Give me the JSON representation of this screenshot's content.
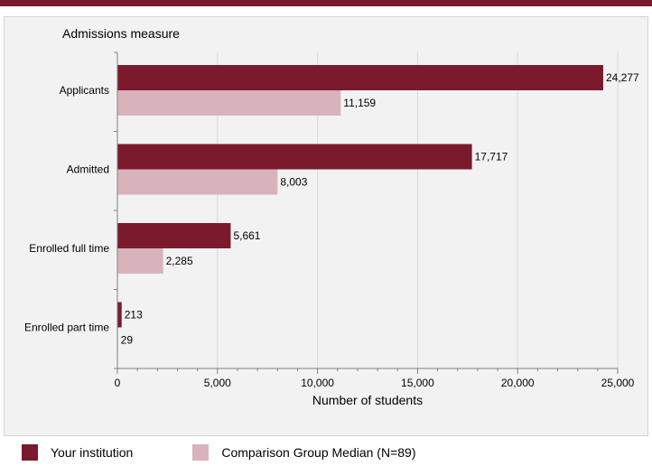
{
  "colors": {
    "top_bar": "#7b1a2c",
    "institution": "#7b1a2c",
    "comparison": "#d9b3bb",
    "panel_bg": "#f2f2f2",
    "gridline": "#d9d9d9"
  },
  "legend": {
    "institution_label": "Your institution",
    "comparison_label": "Comparison Group Median (N=89)"
  },
  "chart_data": {
    "type": "bar",
    "orientation": "horizontal",
    "title": "Admissions measure",
    "xlabel": "Number of students",
    "ylabel": "",
    "categories": [
      "Applicants",
      "Admitted",
      "Enrolled full time",
      "Enrolled part time"
    ],
    "series": [
      {
        "name": "Your institution",
        "values": [
          24277,
          17717,
          5661,
          213
        ],
        "labels": [
          "24,277",
          "17,717",
          "5,661",
          "213"
        ]
      },
      {
        "name": "Comparison Group Median (N=89)",
        "values": [
          11159,
          8003,
          2285,
          29
        ],
        "labels": [
          "11,159",
          "8,003",
          "2,285",
          "29"
        ]
      }
    ],
    "xlim": [
      0,
      25000
    ],
    "xticks": [
      0,
      5000,
      10000,
      15000,
      20000,
      25000
    ],
    "xtick_labels": [
      "0",
      "5,000",
      "10,000",
      "15,000",
      "20,000",
      "25,000"
    ],
    "grid": true,
    "legend_position": "bottom"
  }
}
